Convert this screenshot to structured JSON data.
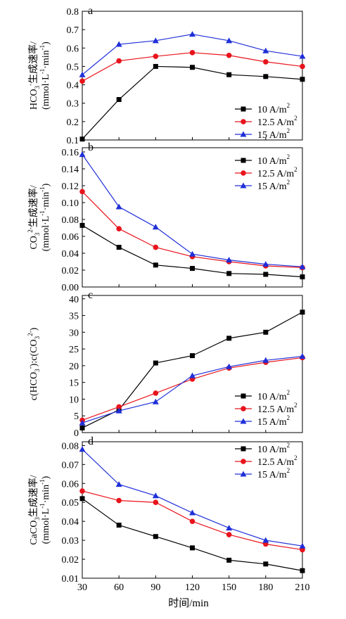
{
  "chart_data": [
    {
      "type": "line",
      "panel": "a",
      "ylabel_line1": "HCO",
      "ylabel_sub": "3",
      "ylabel_sup": "-",
      "ylabel_tail": "生成速率/",
      "ylabel_line2": "(mmol·L",
      "ylabel_line2_sup": "-1",
      "ylabel_line2_mid": "·min",
      "ylabel_line2_sup2": "-1",
      "ylabel_line2_end": ")",
      "ylim": [
        0.1,
        0.8
      ],
      "yticks": [
        "0.1",
        "0.2",
        "0.3",
        "0.4",
        "0.5",
        "0.6",
        "0.7",
        "0.8"
      ],
      "legend_position": "lower-right",
      "x": [
        30,
        60,
        90,
        120,
        150,
        180,
        210
      ],
      "series": [
        {
          "name": "10 A/m",
          "sup": "2",
          "color": "#000000",
          "marker": "square",
          "values": [
            0.105,
            0.32,
            0.5,
            0.495,
            0.455,
            0.445,
            0.43
          ]
        },
        {
          "name": "12.5 A/m",
          "sup": "2",
          "color": "#e8131b",
          "marker": "circle",
          "values": [
            0.42,
            0.53,
            0.555,
            0.575,
            0.56,
            0.525,
            0.5
          ]
        },
        {
          "name": "15 A/m",
          "sup": "2",
          "color": "#1f2fd8",
          "marker": "triangle",
          "values": [
            0.455,
            0.62,
            0.64,
            0.675,
            0.64,
            0.585,
            0.555
          ]
        }
      ]
    },
    {
      "type": "line",
      "panel": "b",
      "ylabel_line1": "CO",
      "ylabel_sub": "3",
      "ylabel_sup": "2-",
      "ylabel_tail": "生成速率/",
      "ylabel_line2": "(mmol·L",
      "ylabel_line2_sup": "-1",
      "ylabel_line2_mid": "·min",
      "ylabel_line2_sup2": "-1",
      "ylabel_line2_end": ")",
      "ylim": [
        0.0,
        0.165
      ],
      "yticks": [
        "0.00",
        "0.02",
        "0.04",
        "0.06",
        "0.08",
        "0.10",
        "0.12",
        "0.14",
        "0.16"
      ],
      "legend_position": "top-right",
      "x": [
        30,
        60,
        90,
        120,
        150,
        180,
        210
      ],
      "series": [
        {
          "name": "10 A/m",
          "sup": "2",
          "color": "#000000",
          "marker": "square",
          "values": [
            0.073,
            0.047,
            0.026,
            0.022,
            0.016,
            0.015,
            0.012
          ]
        },
        {
          "name": "12.5 A/m",
          "sup": "2",
          "color": "#e8131b",
          "marker": "circle",
          "values": [
            0.113,
            0.069,
            0.047,
            0.036,
            0.03,
            0.025,
            0.023
          ]
        },
        {
          "name": "15 A/m",
          "sup": "2",
          "color": "#1f2fd8",
          "marker": "triangle",
          "values": [
            0.157,
            0.095,
            0.071,
            0.039,
            0.032,
            0.027,
            0.024
          ]
        }
      ]
    },
    {
      "type": "line",
      "panel": "c",
      "ylabel_line1": "c(HCO",
      "ylabel_sub": "3",
      "ylabel_sup": "-",
      "ylabel_tail": "):c(CO",
      "ylabel_sub2": "3",
      "ylabel_sup2": "2-",
      "ylabel_end": ")",
      "ylim": [
        0,
        41
      ],
      "yticks": [
        "0",
        "5",
        "10",
        "15",
        "20",
        "25",
        "30",
        "35",
        "40"
      ],
      "legend_position": "lower-right",
      "x": [
        30,
        60,
        90,
        120,
        150,
        180,
        210
      ],
      "series": [
        {
          "name": "10 A/m",
          "sup": "2",
          "color": "#000000",
          "marker": "square",
          "values": [
            1.4,
            6.8,
            20.8,
            23.0,
            28.2,
            30.0,
            36.0
          ]
        },
        {
          "name": "12.5 A/m",
          "sup": "2",
          "color": "#e8131b",
          "marker": "circle",
          "values": [
            3.7,
            7.7,
            11.8,
            16.0,
            19.3,
            21.0,
            22.4
          ]
        },
        {
          "name": "15 A/m",
          "sup": "2",
          "color": "#1f2fd8",
          "marker": "triangle",
          "values": [
            2.9,
            6.5,
            9.2,
            17.0,
            19.7,
            21.6,
            22.8
          ]
        }
      ]
    },
    {
      "type": "line",
      "panel": "d",
      "ylabel_line1": "CaCO",
      "ylabel_sub": "3",
      "ylabel_tail": "生成速率/",
      "ylabel_line2": "(mmol·L",
      "ylabel_line2_sup": "-1",
      "ylabel_line2_mid": "·min",
      "ylabel_line2_sup2": "-1",
      "ylabel_line2_end": ")",
      "ylim": [
        0.01,
        0.082
      ],
      "yticks": [
        "0.01",
        "0.02",
        "0.03",
        "0.04",
        "0.05",
        "0.06",
        "0.07",
        "0.08"
      ],
      "legend_position": "top-right",
      "x": [
        30,
        60,
        90,
        120,
        150,
        180,
        210
      ],
      "series": [
        {
          "name": "10 A/m",
          "sup": "2",
          "color": "#000000",
          "marker": "square",
          "values": [
            0.052,
            0.038,
            0.032,
            0.026,
            0.0195,
            0.0175,
            0.014
          ]
        },
        {
          "name": "12.5 A/m",
          "sup": "2",
          "color": "#e8131b",
          "marker": "circle",
          "values": [
            0.056,
            0.051,
            0.05,
            0.04,
            0.033,
            0.028,
            0.025
          ]
        },
        {
          "name": "15 A/m",
          "sup": "2",
          "color": "#1f2fd8",
          "marker": "triangle",
          "values": [
            0.078,
            0.0595,
            0.0535,
            0.0445,
            0.0365,
            0.03,
            0.027
          ]
        }
      ]
    }
  ],
  "x_axis": {
    "ticks": [
      "30",
      "60",
      "90",
      "120",
      "150",
      "180",
      "210"
    ],
    "xlabel": "时间/min"
  }
}
